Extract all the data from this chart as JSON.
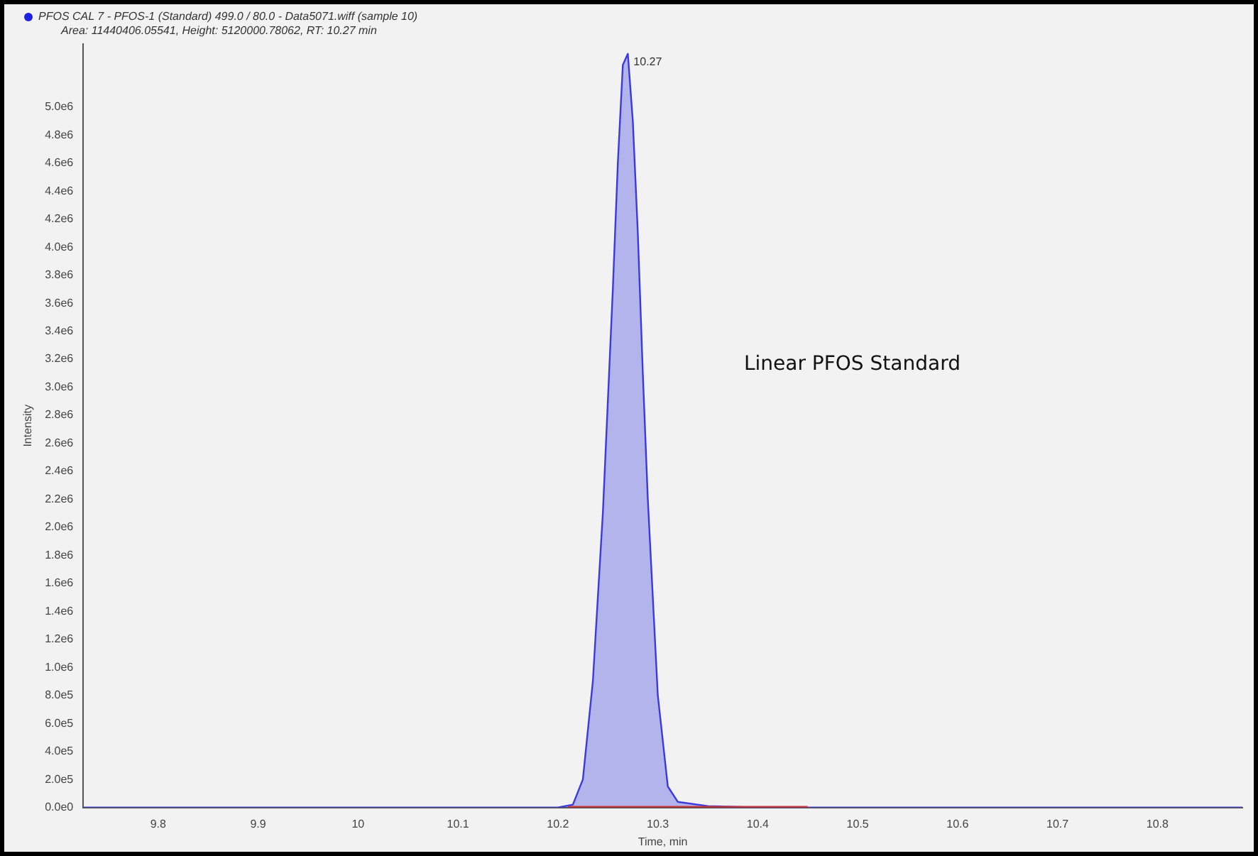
{
  "chart_data": {
    "type": "area",
    "title": "PFOS CAL 7 - PFOS-1 (Standard) 499.0 / 80.0 - Data5071.wiff (sample 10)",
    "subtitle": "Area: 11440406.05541, Height: 5120000.78062, RT: 10.27 min",
    "xlabel": "Time, min",
    "ylabel": "Intensity",
    "xlim": [
      9.725,
      10.885
    ],
    "xticks": [
      9.8,
      9.9,
      10.0,
      10.1,
      10.2,
      10.3,
      10.4,
      10.5,
      10.6,
      10.7,
      10.8
    ],
    "ylim": [
      0,
      5450000
    ],
    "yticks": [
      {
        "value": 0,
        "label": "0.0e0"
      },
      {
        "value": 200000,
        "label": "2.0e5"
      },
      {
        "value": 400000,
        "label": "4.0e5"
      },
      {
        "value": 600000,
        "label": "6.0e5"
      },
      {
        "value": 800000,
        "label": "8.0e5"
      },
      {
        "value": 1000000,
        "label": "1.0e6"
      },
      {
        "value": 1200000,
        "label": "1.2e6"
      },
      {
        "value": 1400000,
        "label": "1.4e6"
      },
      {
        "value": 1600000,
        "label": "1.6e6"
      },
      {
        "value": 1800000,
        "label": "1.8e6"
      },
      {
        "value": 2000000,
        "label": "2.0e6"
      },
      {
        "value": 2200000,
        "label": "2.2e6"
      },
      {
        "value": 2400000,
        "label": "2.4e6"
      },
      {
        "value": 2600000,
        "label": "2.6e6"
      },
      {
        "value": 2800000,
        "label": "2.8e6"
      },
      {
        "value": 3000000,
        "label": "3.0e6"
      },
      {
        "value": 3200000,
        "label": "3.2e6"
      },
      {
        "value": 3400000,
        "label": "3.4e6"
      },
      {
        "value": 3600000,
        "label": "3.6e6"
      },
      {
        "value": 3800000,
        "label": "3.8e6"
      },
      {
        "value": 4000000,
        "label": "4.0e6"
      },
      {
        "value": 4200000,
        "label": "4.2e6"
      },
      {
        "value": 4400000,
        "label": "4.4e6"
      },
      {
        "value": 4600000,
        "label": "4.6e6"
      },
      {
        "value": 4800000,
        "label": "4.8e6"
      },
      {
        "value": 5000000,
        "label": "5.0e6"
      }
    ],
    "series": [
      {
        "color": "#3a3ae0",
        "x": [
          9.725,
          9.8,
          9.9,
          10.0,
          10.1,
          10.2,
          10.215,
          10.225,
          10.235,
          10.245,
          10.255,
          10.26,
          10.265,
          10.27,
          10.275,
          10.28,
          10.285,
          10.29,
          10.3,
          10.31,
          10.32,
          10.35,
          10.4,
          10.5,
          10.6,
          10.7,
          10.8,
          10.885
        ],
        "values": [
          0,
          0,
          0,
          0,
          0,
          0,
          20000,
          200000,
          900000,
          2100000,
          3700000,
          4600000,
          5300000,
          5380000,
          4900000,
          4100000,
          3100000,
          2200000,
          800000,
          150000,
          40000,
          10000,
          0,
          0,
          0,
          0,
          0,
          0
        ]
      },
      {
        "type": "line",
        "color": "#d03030",
        "x": [
          10.21,
          10.45
        ],
        "values": [
          0,
          0
        ]
      }
    ],
    "annotations": [
      {
        "text": "10.27",
        "x": 10.27,
        "y": 5380000
      },
      "Linear PFOS Standard"
    ],
    "grid": false,
    "marker": "none"
  }
}
